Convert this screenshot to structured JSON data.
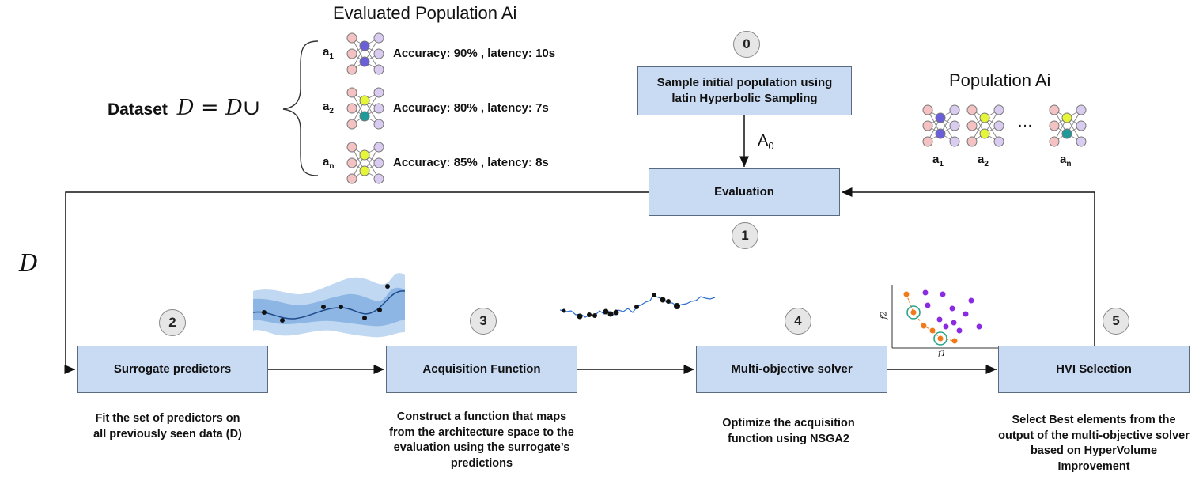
{
  "evaluated_title": "Evaluated Population Ai",
  "dataset": {
    "label": "Dataset",
    "formula": "D = D∪"
  },
  "evaluated_rows": [
    {
      "label": "a",
      "sub": "1",
      "text": "Accuracy: 90% ,  latency: 10s"
    },
    {
      "label": "a",
      "sub": "2",
      "text": "Accuracy: 80% ,  latency: 7s"
    },
    {
      "label": "a",
      "sub": "n",
      "text": "Accuracy: 85% ,  latency: 8s"
    }
  ],
  "step0": {
    "num": "0",
    "label": "Sample initial population using latin Hyperbolic Sampling"
  },
  "a0_label": "A",
  "a0_sub": "0",
  "population_title": "Population Ai",
  "population_labels": [
    {
      "label": "a",
      "sub": "1"
    },
    {
      "label": "a",
      "sub": "2"
    },
    {
      "label": "a",
      "sub": "n"
    }
  ],
  "ellipsis": "…",
  "evaluation": {
    "num": "1",
    "label": "Evaluation"
  },
  "left_d": "D",
  "steps": [
    {
      "num": "2",
      "label": "Surrogate  predictors",
      "desc": "Fit the set of predictors on all previously seen data (D)"
    },
    {
      "num": "3",
      "label": "Acquisition Function",
      "desc": "Construct a function that maps from the architecture space to the evaluation using the surrogate’s predictions"
    },
    {
      "num": "4",
      "label": "Multi-objective solver",
      "desc": "Optimize the acquisition function using NSGA2"
    },
    {
      "num": "5",
      "label": "HVI Selection",
      "desc": "Select  Best elements from the output of the multi-objective solver based on HyperVolume Improvement"
    }
  ],
  "pareto_axes": {
    "x": "f1",
    "y": "f2"
  },
  "colors": {
    "box": "#c9daf3",
    "node_pink": "#f4c2c2",
    "node_lavender": "#d9ccf0",
    "node_blue": "#6a5fd6",
    "node_yellow": "#e4f53a",
    "node_teal": "#1e9a9a",
    "gp_band": "#8cb8e6",
    "pareto_orange": "#f07a1a",
    "pareto_purple": "#8a2be2"
  }
}
